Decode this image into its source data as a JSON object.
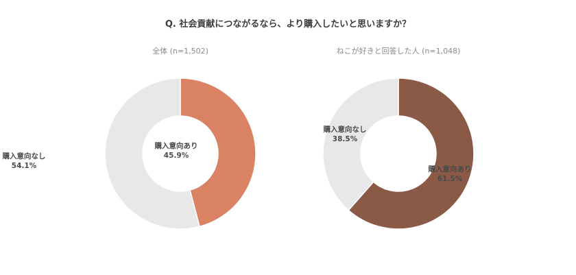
{
  "title": "Q. 社会貢献につながるなら、より購入したいと思いますか？",
  "charts": [
    {
      "subtitle": "全体 (n=1,502)",
      "yes": {
        "label": "購入意向あり",
        "value_text": "45.9%",
        "value": 45.9,
        "color": "#d98264"
      },
      "no": {
        "label": "購入意向なし",
        "value_text": "54.1%",
        "value": 54.1,
        "color": "#e8e8e8"
      }
    },
    {
      "subtitle": "ねこが好きと回答した人 (n=1,048)",
      "yes": {
        "label": "購入意向あり",
        "value_text": "61.5%",
        "value": 61.5,
        "color": "#8a5a46"
      },
      "no": {
        "label": "購入意向なし",
        "value_text": "38.5%",
        "value": 38.5,
        "color": "#e8e8e8"
      }
    }
  ],
  "chart_data": [
    {
      "type": "pie",
      "title": "全体 (n=1,502)",
      "categories": [
        "購入意向あり",
        "購入意向なし"
      ],
      "values": [
        45.9,
        54.1
      ],
      "colors": [
        "#d98264",
        "#e8e8e8"
      ],
      "donut": true
    },
    {
      "type": "pie",
      "title": "ねこが好きと回答した人 (n=1,048)",
      "categories": [
        "購入意向あり",
        "購入意向なし"
      ],
      "values": [
        61.5,
        38.5
      ],
      "colors": [
        "#8a5a46",
        "#e8e8e8"
      ],
      "donut": true
    }
  ]
}
